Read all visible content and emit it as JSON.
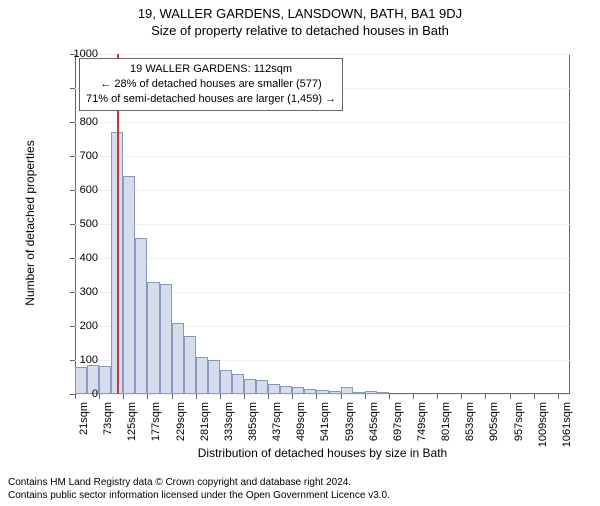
{
  "title": "19, WALLER GARDENS, LANSDOWN, BATH, BA1 9DJ",
  "subtitle": "Size of property relative to detached houses in Bath",
  "y_axis": {
    "label": "Number of detached properties",
    "ticks": [
      0,
      100,
      200,
      300,
      400,
      500,
      600,
      700,
      800,
      900,
      1000
    ],
    "min": 0,
    "max": 1000
  },
  "x_axis": {
    "label": "Distribution of detached houses by size in Bath",
    "ticks": [
      "21sqm",
      "73sqm",
      "125sqm",
      "177sqm",
      "229sqm",
      "281sqm",
      "333sqm",
      "385sqm",
      "437sqm",
      "489sqm",
      "541sqm",
      "593sqm",
      "645sqm",
      "697sqm",
      "749sqm",
      "801sqm",
      "853sqm",
      "905sqm",
      "957sqm",
      "1009sqm",
      "1061sqm"
    ]
  },
  "chart": {
    "type": "histogram",
    "bin_start": 21,
    "bin_end": 1087,
    "bin_width": 26,
    "num_bins": 41,
    "values": [
      80,
      85,
      82,
      770,
      640,
      460,
      330,
      325,
      210,
      170,
      110,
      100,
      70,
      60,
      45,
      40,
      30,
      25,
      20,
      15,
      12,
      10,
      20,
      5,
      8,
      5,
      0,
      0,
      0,
      0,
      0,
      0,
      0,
      0,
      0,
      0,
      0,
      0,
      0,
      0,
      0
    ],
    "bar_fill": "#d5dcec",
    "bar_stroke": "#8898bf",
    "background_color": "#ffffff",
    "border_color": "#666666",
    "grid_color": "#eeeeee",
    "marker_value": 112,
    "marker_color": "#c43a3a"
  },
  "annotation": {
    "line1": "19 WALLER GARDENS: 112sqm",
    "line2": "← 28% of detached houses are smaller (577)",
    "line3": "71% of semi-detached houses are larger (1,459) →"
  },
  "footer": {
    "line1": "Contains HM Land Registry data © Crown copyright and database right 2024.",
    "line2": "Contains public sector information licensed under the Open Government Licence v3.0."
  }
}
